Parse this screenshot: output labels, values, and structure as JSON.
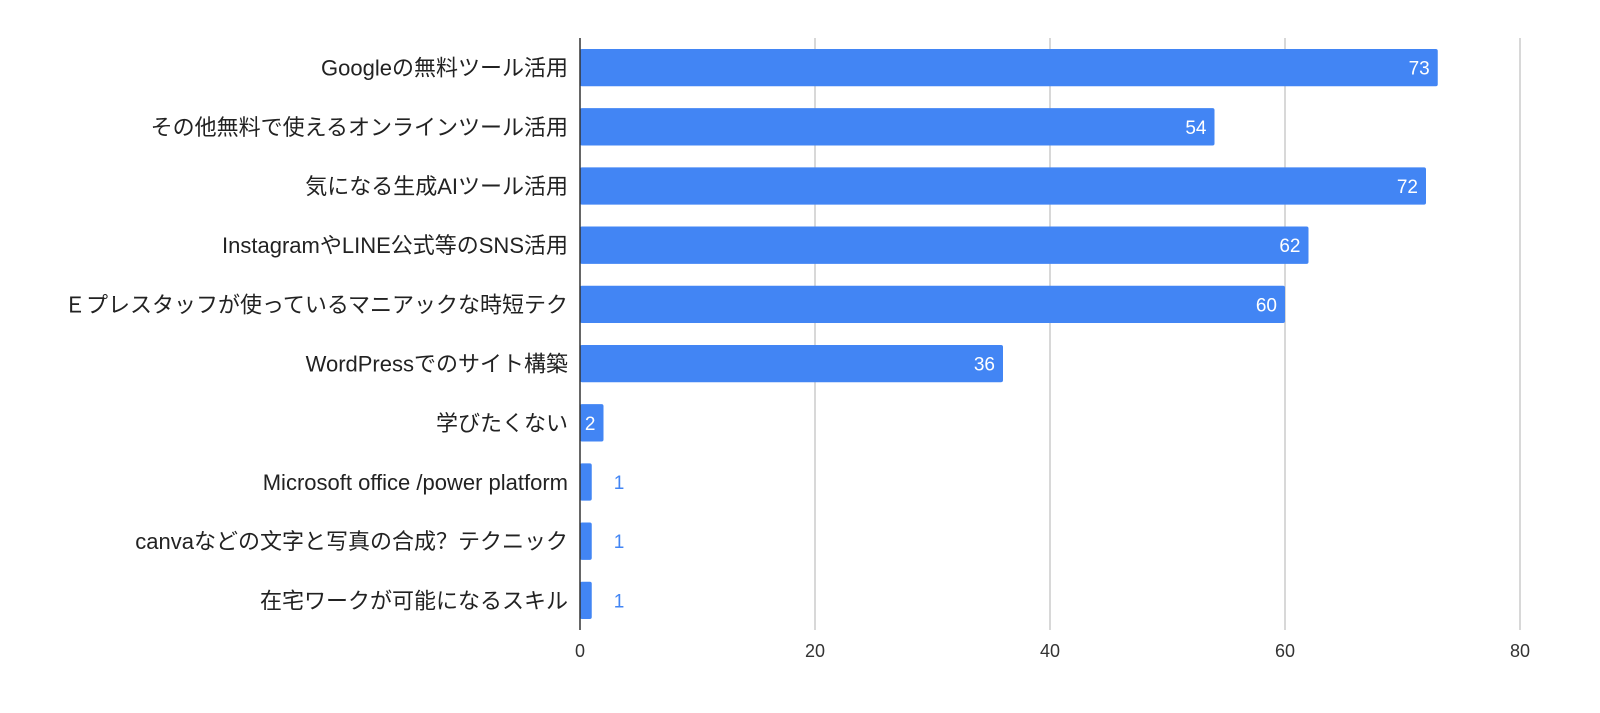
{
  "chart_data": {
    "type": "bar",
    "orientation": "horizontal",
    "title": "",
    "xlabel": "",
    "ylabel": "",
    "categories": [
      "Googleの無料ツール活用",
      "その他無料で使えるオンラインツール活用",
      "気になる生成AIツール活用",
      "InstagramやLINE公式等のSNS活用",
      "Ｅプレスタッフが使っているマニアックな時短テク",
      "WordPressでのサイト構築",
      "学びたくない",
      "Microsoft office /power platform",
      "canvaなどの文字と写真の合成？テクニック",
      "在宅ワークが可能になるスキル"
    ],
    "values": [
      73,
      54,
      72,
      62,
      60,
      36,
      2,
      1,
      1,
      1
    ],
    "xlim": [
      0,
      80
    ],
    "x_ticks": [
      0,
      20,
      40,
      60,
      80
    ],
    "grid": true,
    "legend": "none",
    "data_labels": true,
    "colors": {
      "bar": "#4285f4",
      "label_inside": "#ffffff",
      "label_outside": "#4285f4",
      "grid": "#cccccc",
      "axis": "#333333"
    }
  }
}
